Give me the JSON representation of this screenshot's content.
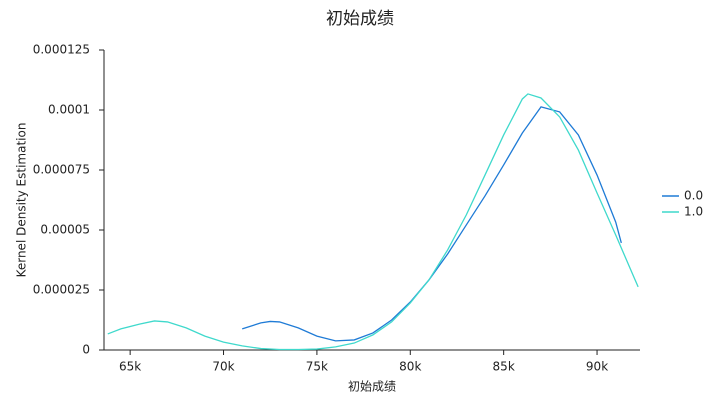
{
  "chart_data": {
    "type": "line",
    "title": "初始成绩",
    "x_label": "初始成绩",
    "y_label": "Kernel Density Estimation",
    "xlim": [
      63600,
      92300
    ],
    "ylim": [
      0,
      0.000125
    ],
    "xticks": [
      {
        "value": 65000,
        "label": "65k"
      },
      {
        "value": 70000,
        "label": "70k"
      },
      {
        "value": 75000,
        "label": "75k"
      },
      {
        "value": 80000,
        "label": "80k"
      },
      {
        "value": 85000,
        "label": "85k"
      },
      {
        "value": 90000,
        "label": "90k"
      }
    ],
    "yticks": [
      0,
      2.5e-05,
      5e-05,
      7.5e-05,
      0.0001,
      0.000125
    ],
    "legend": "right",
    "series": [
      {
        "name": "0.0",
        "color": "#1f7bd6",
        "x": [
          71000,
          72000,
          72500,
          73000,
          74000,
          75000,
          76000,
          77000,
          78000,
          79000,
          80000,
          81000,
          82000,
          83000,
          84000,
          85000,
          86000,
          87000,
          88000,
          89000,
          90000,
          91000,
          91300
        ],
        "values": [
          8.8e-06,
          1.13e-05,
          1.19e-05,
          1.17e-05,
          9.2e-06,
          5.8e-06,
          3.8e-06,
          4.2e-06,
          7.1e-06,
          1.25e-05,
          2e-05,
          2.92e-05,
          4e-05,
          5.21e-05,
          6.42e-05,
          7.71e-05,
          9.04e-05,
          0.0001013,
          9.92e-05,
          8.96e-05,
          7.29e-05,
          5.33e-05,
          4.46e-05
        ]
      },
      {
        "name": "1.0",
        "color": "#3fd9cc",
        "x": [
          63800,
          64500,
          65500,
          66300,
          67000,
          68000,
          69000,
          70000,
          71000,
          72000,
          73000,
          74000,
          75000,
          76000,
          77000,
          78000,
          79000,
          80000,
          81000,
          82000,
          83000,
          84000,
          85000,
          86000,
          86300,
          87000,
          88000,
          89000,
          90000,
          91000,
          92200
        ],
        "values": [
          6.7e-06,
          8.8e-06,
          1.08e-05,
          1.21e-05,
          1.17e-05,
          9.2e-06,
          5.8e-06,
          3.3e-06,
          1.7e-06,
          6e-07,
          2e-07,
          2e-07,
          4e-07,
          1.3e-06,
          2.9e-06,
          6.3e-06,
          1.17e-05,
          1.96e-05,
          2.92e-05,
          4.17e-05,
          5.63e-05,
          7.29e-05,
          8.96e-05,
          0.0001046,
          0.0001067,
          0.000105,
          9.71e-05,
          8.33e-05,
          6.54e-05,
          4.79e-05,
          2.63e-05
        ]
      }
    ]
  }
}
